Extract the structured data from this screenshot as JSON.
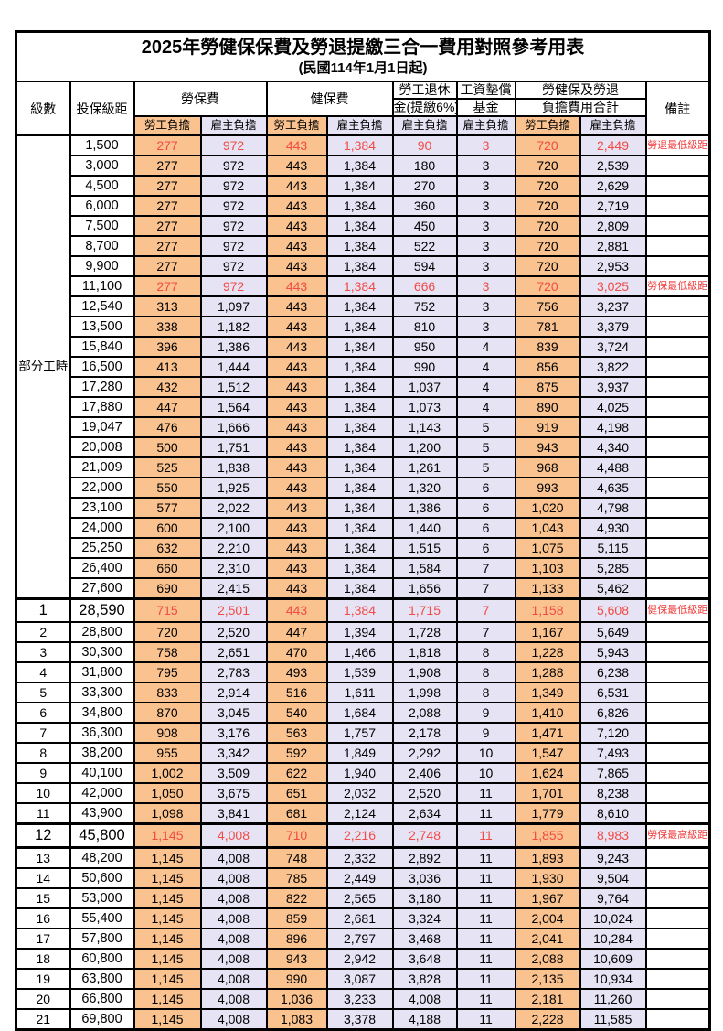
{
  "title": "2025年勞健保保費及勞退提繳三合一費用對照參考用表",
  "subtitle": "(民國114年1月1日起)",
  "colors": {
    "employee_fill": "#F9C28E",
    "employer_fill": "#E6E3F5",
    "highlight_red": "#F24B45"
  },
  "header": {
    "level": "級數",
    "bracket": "投保級距",
    "labor_ins": "勞保費",
    "health_ins": "健保費",
    "pension_line1": "勞工退休",
    "pension_line2": "金(提繳6%)",
    "wage_fund_line1": "工資墊償",
    "wage_fund_line2": "基金",
    "total_line1": "勞健保及勞退",
    "total_line2": "負擔費用合計",
    "remarks": "備註",
    "employee_share": "勞工負擔",
    "employer_share": "雇主負擔"
  },
  "part_time": {
    "label": "部分工時",
    "span": 23
  },
  "rows": [
    {
      "level": null,
      "bracket": "1,500",
      "values": [
        "277",
        "972",
        "443",
        "1,384",
        "90",
        "3",
        "720",
        "2,449"
      ],
      "note": "勞退最低級距",
      "red": true
    },
    {
      "level": null,
      "bracket": "3,000",
      "values": [
        "277",
        "972",
        "443",
        "1,384",
        "180",
        "3",
        "720",
        "2,539"
      ],
      "note": "",
      "red": false
    },
    {
      "level": null,
      "bracket": "4,500",
      "values": [
        "277",
        "972",
        "443",
        "1,384",
        "270",
        "3",
        "720",
        "2,629"
      ],
      "note": "",
      "red": false
    },
    {
      "level": null,
      "bracket": "6,000",
      "values": [
        "277",
        "972",
        "443",
        "1,384",
        "360",
        "3",
        "720",
        "2,719"
      ],
      "note": "",
      "red": false
    },
    {
      "level": null,
      "bracket": "7,500",
      "values": [
        "277",
        "972",
        "443",
        "1,384",
        "450",
        "3",
        "720",
        "2,809"
      ],
      "note": "",
      "red": false
    },
    {
      "level": null,
      "bracket": "8,700",
      "values": [
        "277",
        "972",
        "443",
        "1,384",
        "522",
        "3",
        "720",
        "2,881"
      ],
      "note": "",
      "red": false
    },
    {
      "level": null,
      "bracket": "9,900",
      "values": [
        "277",
        "972",
        "443",
        "1,384",
        "594",
        "3",
        "720",
        "2,953"
      ],
      "note": "",
      "red": false
    },
    {
      "level": null,
      "bracket": "11,100",
      "values": [
        "277",
        "972",
        "443",
        "1,384",
        "666",
        "3",
        "720",
        "3,025"
      ],
      "note": "勞保最低級距",
      "red": true
    },
    {
      "level": null,
      "bracket": "12,540",
      "values": [
        "313",
        "1,097",
        "443",
        "1,384",
        "752",
        "3",
        "756",
        "3,237"
      ],
      "note": "",
      "red": false
    },
    {
      "level": null,
      "bracket": "13,500",
      "values": [
        "338",
        "1,182",
        "443",
        "1,384",
        "810",
        "3",
        "781",
        "3,379"
      ],
      "note": "",
      "red": false
    },
    {
      "level": null,
      "bracket": "15,840",
      "values": [
        "396",
        "1,386",
        "443",
        "1,384",
        "950",
        "4",
        "839",
        "3,724"
      ],
      "note": "",
      "red": false
    },
    {
      "level": null,
      "bracket": "16,500",
      "values": [
        "413",
        "1,444",
        "443",
        "1,384",
        "990",
        "4",
        "856",
        "3,822"
      ],
      "note": "",
      "red": false
    },
    {
      "level": null,
      "bracket": "17,280",
      "values": [
        "432",
        "1,512",
        "443",
        "1,384",
        "1,037",
        "4",
        "875",
        "3,937"
      ],
      "note": "",
      "red": false
    },
    {
      "level": null,
      "bracket": "17,880",
      "values": [
        "447",
        "1,564",
        "443",
        "1,384",
        "1,073",
        "4",
        "890",
        "4,025"
      ],
      "note": "",
      "red": false
    },
    {
      "level": null,
      "bracket": "19,047",
      "values": [
        "476",
        "1,666",
        "443",
        "1,384",
        "1,143",
        "5",
        "919",
        "4,198"
      ],
      "note": "",
      "red": false
    },
    {
      "level": null,
      "bracket": "20,008",
      "values": [
        "500",
        "1,751",
        "443",
        "1,384",
        "1,200",
        "5",
        "943",
        "4,340"
      ],
      "note": "",
      "red": false
    },
    {
      "level": null,
      "bracket": "21,009",
      "values": [
        "525",
        "1,838",
        "443",
        "1,384",
        "1,261",
        "5",
        "968",
        "4,488"
      ],
      "note": "",
      "red": false
    },
    {
      "level": null,
      "bracket": "22,000",
      "values": [
        "550",
        "1,925",
        "443",
        "1,384",
        "1,320",
        "6",
        "993",
        "4,635"
      ],
      "note": "",
      "red": false
    },
    {
      "level": null,
      "bracket": "23,100",
      "values": [
        "577",
        "2,022",
        "443",
        "1,384",
        "1,386",
        "6",
        "1,020",
        "4,798"
      ],
      "note": "",
      "red": false
    },
    {
      "level": null,
      "bracket": "24,000",
      "values": [
        "600",
        "2,100",
        "443",
        "1,384",
        "1,440",
        "6",
        "1,043",
        "4,930"
      ],
      "note": "",
      "red": false
    },
    {
      "level": null,
      "bracket": "25,250",
      "values": [
        "632",
        "2,210",
        "443",
        "1,384",
        "1,515",
        "6",
        "1,075",
        "5,115"
      ],
      "note": "",
      "red": false
    },
    {
      "level": null,
      "bracket": "26,400",
      "values": [
        "660",
        "2,310",
        "443",
        "1,384",
        "1,584",
        "7",
        "1,103",
        "5,285"
      ],
      "note": "",
      "red": false
    },
    {
      "level": null,
      "bracket": "27,600",
      "values": [
        "690",
        "2,415",
        "443",
        "1,384",
        "1,656",
        "7",
        "1,133",
        "5,462"
      ],
      "note": "",
      "red": false
    },
    {
      "level": "1",
      "bracket": "28,590",
      "values": [
        "715",
        "2,501",
        "443",
        "1,384",
        "1,715",
        "7",
        "1,158",
        "5,608"
      ],
      "note": "健保最低級距",
      "red": true,
      "emph": true,
      "thickTop": true
    },
    {
      "level": "2",
      "bracket": "28,800",
      "values": [
        "720",
        "2,520",
        "447",
        "1,394",
        "1,728",
        "7",
        "1,167",
        "5,649"
      ],
      "note": "",
      "red": false
    },
    {
      "level": "3",
      "bracket": "30,300",
      "values": [
        "758",
        "2,651",
        "470",
        "1,466",
        "1,818",
        "8",
        "1,228",
        "5,943"
      ],
      "note": "",
      "red": false
    },
    {
      "level": "4",
      "bracket": "31,800",
      "values": [
        "795",
        "2,783",
        "493",
        "1,539",
        "1,908",
        "8",
        "1,288",
        "6,238"
      ],
      "note": "",
      "red": false
    },
    {
      "level": "5",
      "bracket": "33,300",
      "values": [
        "833",
        "2,914",
        "516",
        "1,611",
        "1,998",
        "8",
        "1,349",
        "6,531"
      ],
      "note": "",
      "red": false
    },
    {
      "level": "6",
      "bracket": "34,800",
      "values": [
        "870",
        "3,045",
        "540",
        "1,684",
        "2,088",
        "9",
        "1,410",
        "6,826"
      ],
      "note": "",
      "red": false
    },
    {
      "level": "7",
      "bracket": "36,300",
      "values": [
        "908",
        "3,176",
        "563",
        "1,757",
        "2,178",
        "9",
        "1,471",
        "7,120"
      ],
      "note": "",
      "red": false
    },
    {
      "level": "8",
      "bracket": "38,200",
      "values": [
        "955",
        "3,342",
        "592",
        "1,849",
        "2,292",
        "10",
        "1,547",
        "7,493"
      ],
      "note": "",
      "red": false
    },
    {
      "level": "9",
      "bracket": "40,100",
      "values": [
        "1,002",
        "3,509",
        "622",
        "1,940",
        "2,406",
        "10",
        "1,624",
        "7,865"
      ],
      "note": "",
      "red": false
    },
    {
      "level": "10",
      "bracket": "42,000",
      "values": [
        "1,050",
        "3,675",
        "651",
        "2,032",
        "2,520",
        "11",
        "1,701",
        "8,238"
      ],
      "note": "",
      "red": false
    },
    {
      "level": "11",
      "bracket": "43,900",
      "values": [
        "1,098",
        "3,841",
        "681",
        "2,124",
        "2,634",
        "11",
        "1,779",
        "8,610"
      ],
      "note": "",
      "red": false
    },
    {
      "level": "12",
      "bracket": "45,800",
      "values": [
        "1,145",
        "4,008",
        "710",
        "2,216",
        "2,748",
        "11",
        "1,855",
        "8,983"
      ],
      "note": "勞保最高級距",
      "red": true,
      "emph": true,
      "thickTop": true,
      "thickBottom": true
    },
    {
      "level": "13",
      "bracket": "48,200",
      "values": [
        "1,145",
        "4,008",
        "748",
        "2,332",
        "2,892",
        "11",
        "1,893",
        "9,243"
      ],
      "note": "",
      "red": false
    },
    {
      "level": "14",
      "bracket": "50,600",
      "values": [
        "1,145",
        "4,008",
        "785",
        "2,449",
        "3,036",
        "11",
        "1,930",
        "9,504"
      ],
      "note": "",
      "red": false
    },
    {
      "level": "15",
      "bracket": "53,000",
      "values": [
        "1,145",
        "4,008",
        "822",
        "2,565",
        "3,180",
        "11",
        "1,967",
        "9,764"
      ],
      "note": "",
      "red": false
    },
    {
      "level": "16",
      "bracket": "55,400",
      "values": [
        "1,145",
        "4,008",
        "859",
        "2,681",
        "3,324",
        "11",
        "2,004",
        "10,024"
      ],
      "note": "",
      "red": false
    },
    {
      "level": "17",
      "bracket": "57,800",
      "values": [
        "1,145",
        "4,008",
        "896",
        "2,797",
        "3,468",
        "11",
        "2,041",
        "10,284"
      ],
      "note": "",
      "red": false
    },
    {
      "level": "18",
      "bracket": "60,800",
      "values": [
        "1,145",
        "4,008",
        "943",
        "2,942",
        "3,648",
        "11",
        "2,088",
        "10,609"
      ],
      "note": "",
      "red": false
    },
    {
      "level": "19",
      "bracket": "63,800",
      "values": [
        "1,145",
        "4,008",
        "990",
        "3,087",
        "3,828",
        "11",
        "2,135",
        "10,934"
      ],
      "note": "",
      "red": false
    },
    {
      "level": "20",
      "bracket": "66,800",
      "values": [
        "1,145",
        "4,008",
        "1,036",
        "3,233",
        "4,008",
        "11",
        "2,181",
        "11,260"
      ],
      "note": "",
      "red": false
    },
    {
      "level": "21",
      "bracket": "69,800",
      "values": [
        "1,145",
        "4,008",
        "1,083",
        "3,378",
        "4,188",
        "11",
        "2,228",
        "11,585"
      ],
      "note": "",
      "red": false
    }
  ]
}
